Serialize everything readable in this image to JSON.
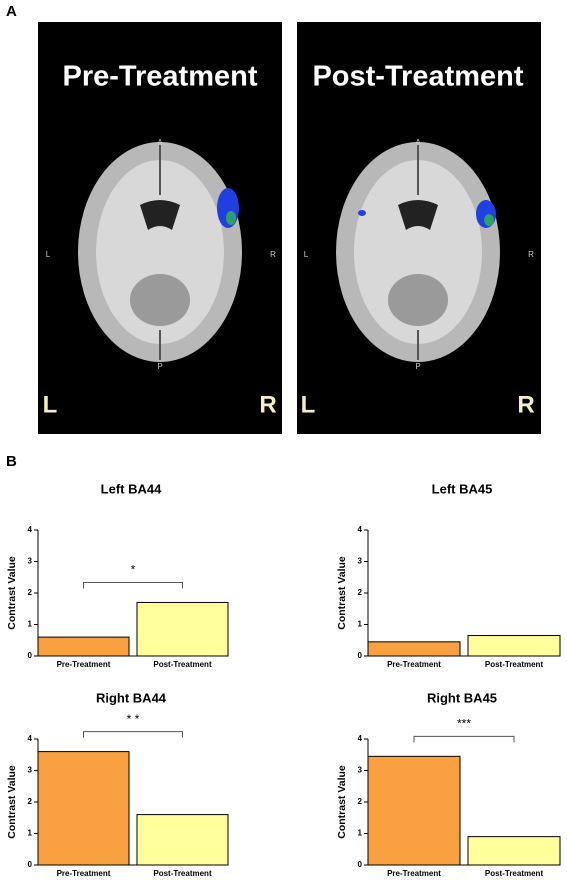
{
  "panel_labels": [
    "A",
    "B"
  ],
  "brain_images": [
    {
      "title": "Pre-Treatment",
      "anterior": "A",
      "posterior": "P",
      "left": "L",
      "right": "R",
      "big_left": "L",
      "big_right": "R"
    },
    {
      "title": "Post-Treatment",
      "anterior": "A",
      "posterior": "P",
      "left": "L",
      "right": "R",
      "big_left": "L",
      "big_right": "R"
    }
  ],
  "chart_data": [
    {
      "type": "bar",
      "title": "Left BA44",
      "categories": [
        "Pre-Treatment",
        "Post-Treatment"
      ],
      "values": [
        0.6,
        1.7
      ],
      "colors": [
        "#f9a040",
        "#ffff9c"
      ],
      "ylabel": "Contrast Value",
      "ylim": [
        0,
        4
      ],
      "yticks": [
        0,
        1,
        2,
        3,
        4
      ],
      "annotation": "*"
    },
    {
      "type": "bar",
      "title": "Left BA45",
      "categories": [
        "Pre-Treatment",
        "Post-Treatment"
      ],
      "values": [
        0.45,
        0.65
      ],
      "colors": [
        "#f9a040",
        "#ffff9c"
      ],
      "ylabel": "Contrast Value",
      "ylim": [
        0,
        4
      ],
      "yticks": [
        0,
        1,
        2,
        3,
        4
      ]
    },
    {
      "type": "bar",
      "title": "Right BA44",
      "categories": [
        "Pre-Treatment",
        "Post-Treatment"
      ],
      "values": [
        3.6,
        1.6
      ],
      "colors": [
        "#f9a040",
        "#ffff9c"
      ],
      "ylabel": "Contrast Value",
      "ylim": [
        0,
        4
      ],
      "yticks": [
        0,
        1,
        2,
        3,
        4
      ],
      "annotation": "* *"
    },
    {
      "type": "bar",
      "title": "Right BA45",
      "categories": [
        "Pre-Treatment",
        "Post-Treatment"
      ],
      "values": [
        3.45,
        0.9
      ],
      "colors": [
        "#f9a040",
        "#ffff9c"
      ],
      "ylabel": "Contrast Value",
      "ylim": [
        0,
        4
      ],
      "yticks": [
        0,
        1,
        2,
        3,
        4
      ],
      "annotation": "***"
    }
  ]
}
